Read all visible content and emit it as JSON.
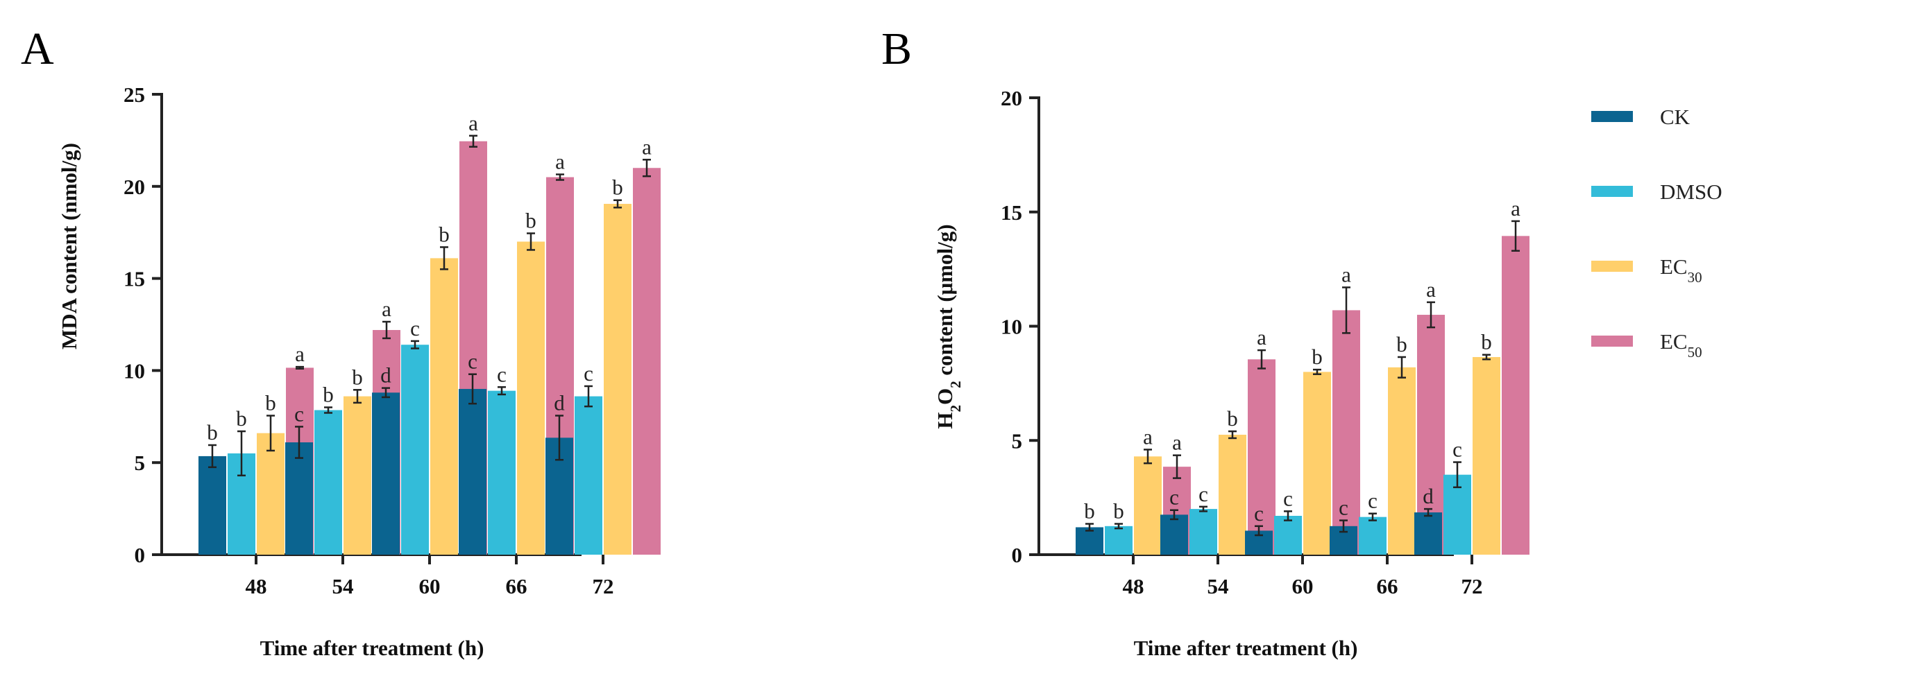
{
  "colors": {
    "CK": "#0b6490",
    "DMSO": "#33bcd9",
    "EC30": "#ffcf6b",
    "EC50": "#d7799c"
  },
  "legend": [
    {
      "key": "CK",
      "text": "CK",
      "sub": ""
    },
    {
      "key": "DMSO",
      "text": "DMSO",
      "sub": ""
    },
    {
      "key": "EC30",
      "text": "EC",
      "sub": "30"
    },
    {
      "key": "EC50",
      "text": "EC",
      "sub": "50"
    }
  ],
  "chart_data": [
    {
      "type": "bar",
      "panel_label": "A",
      "xlabel": "Time after treatment (h)",
      "ylabel": "MDA content (nmol/g)",
      "ylim": [
        0,
        25
      ],
      "yticks": [
        0,
        5,
        10,
        15,
        20,
        25
      ],
      "categories": [
        "48",
        "54",
        "60",
        "66",
        "72"
      ],
      "series": [
        {
          "name": "CK",
          "values": [
            5.35,
            6.1,
            8.8,
            9.0,
            6.35
          ],
          "errors": [
            0.6,
            0.85,
            0.25,
            0.8,
            1.2
          ],
          "letters": [
            "b",
            "c",
            "d",
            "c",
            "d"
          ]
        },
        {
          "name": "DMSO",
          "values": [
            5.5,
            7.85,
            11.4,
            8.9,
            8.6
          ],
          "errors": [
            1.2,
            0.15,
            0.2,
            0.2,
            0.55
          ],
          "letters": [
            "b",
            "b",
            "c",
            "c",
            "c"
          ]
        },
        {
          "name": "EC30",
          "values": [
            6.6,
            8.6,
            16.1,
            17.0,
            19.05
          ],
          "errors": [
            0.95,
            0.35,
            0.6,
            0.45,
            0.2
          ],
          "letters": [
            "b",
            "b",
            "b",
            "b",
            "b"
          ]
        },
        {
          "name": "EC50",
          "values": [
            10.15,
            12.2,
            22.45,
            20.5,
            21.0
          ],
          "errors": [
            0.05,
            0.45,
            0.3,
            0.15,
            0.45
          ],
          "letters": [
            "a",
            "a",
            "a",
            "a",
            "a"
          ]
        }
      ]
    },
    {
      "type": "bar",
      "panel_label": "B",
      "xlabel": "Time after treatment (h)",
      "ylabel_main": "H",
      "ylabel_sub": "2",
      "ylabel_mid": "O",
      "ylabel_sub2": "2",
      "ylabel_rest": " content (μmol/g)",
      "ylim": [
        0,
        20
      ],
      "yticks": [
        0,
        5,
        10,
        15,
        20
      ],
      "categories": [
        "48",
        "54",
        "60",
        "66",
        "72"
      ],
      "series": [
        {
          "name": "CK",
          "values": [
            1.2,
            1.75,
            1.05,
            1.25,
            1.85
          ],
          "errors": [
            0.15,
            0.2,
            0.2,
            0.25,
            0.15
          ],
          "letters": [
            "b",
            "c",
            "c",
            "c",
            "d"
          ]
        },
        {
          "name": "DMSO",
          "values": [
            1.25,
            2.0,
            1.7,
            1.65,
            3.5
          ],
          "errors": [
            0.1,
            0.1,
            0.2,
            0.15,
            0.55
          ],
          "letters": [
            "b",
            "c",
            "c",
            "c",
            "c"
          ]
        },
        {
          "name": "EC30",
          "values": [
            4.3,
            5.25,
            8.0,
            8.2,
            8.65
          ],
          "errors": [
            0.3,
            0.15,
            0.1,
            0.45,
            0.1
          ],
          "letters": [
            "a",
            "b",
            "b",
            "b",
            "b"
          ]
        },
        {
          "name": "EC50",
          "values": [
            3.85,
            8.55,
            10.7,
            10.5,
            13.95
          ],
          "errors": [
            0.5,
            0.4,
            1.0,
            0.55,
            0.65
          ],
          "letters": [
            "a",
            "a",
            "a",
            "a",
            "a"
          ]
        }
      ]
    }
  ]
}
